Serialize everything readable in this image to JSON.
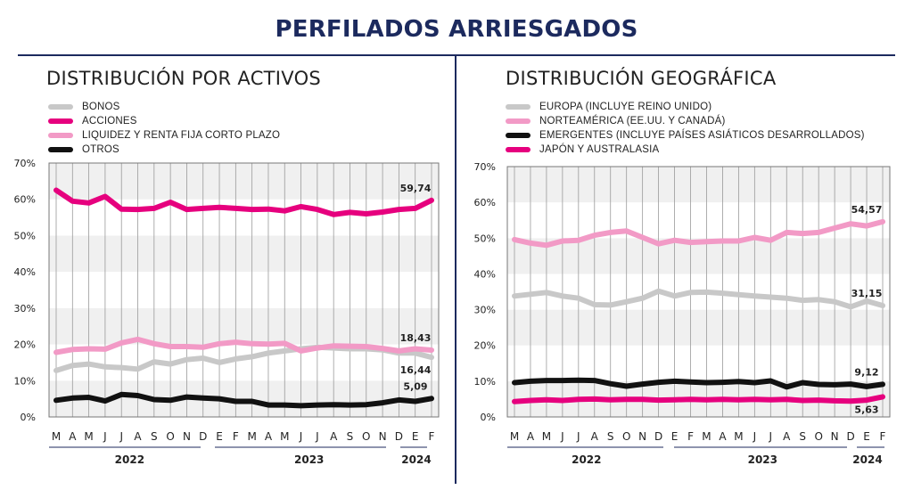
{
  "title": "PERFILADOS ARRIESGADOS",
  "months": [
    "M",
    "A",
    "M",
    "J",
    "J",
    "A",
    "S",
    "O",
    "N",
    "D",
    "E",
    "F",
    "M",
    "A",
    "M",
    "J",
    "J",
    "A",
    "S",
    "O",
    "N",
    "D",
    "E",
    "F"
  ],
  "years": [
    {
      "label": "2022",
      "from": 0,
      "to": 9
    },
    {
      "label": "2023",
      "from": 10,
      "to": 21
    },
    {
      "label": "2024",
      "from": 22,
      "to": 23
    }
  ],
  "chart_data": [
    {
      "type": "line",
      "title": "DISTRIBUCIÓN POR ACTIVOS",
      "yticks": [
        "0%",
        "10%",
        "20%",
        "30%",
        "40%",
        "50%",
        "60%",
        "70%"
      ],
      "ylim": [
        0,
        70
      ],
      "grid": true,
      "legend_position": "top-left",
      "series": [
        {
          "name": "BONOS",
          "color": "#c8c8c8",
          "values": [
            12.8,
            14.2,
            14.6,
            13.8,
            13.6,
            13.2,
            15.2,
            14.6,
            15.8,
            16.2,
            15.0,
            16.0,
            16.6,
            17.6,
            18.2,
            18.8,
            19.2,
            19.0,
            18.8,
            18.8,
            18.5,
            17.6,
            17.6,
            16.44
          ],
          "end_label": "16,44"
        },
        {
          "name": "ACCIONES",
          "color": "#e6007e",
          "values": [
            62.5,
            59.5,
            59.0,
            60.8,
            57.3,
            57.2,
            57.5,
            59.2,
            57.2,
            57.5,
            57.8,
            57.5,
            57.2,
            57.3,
            56.8,
            58.0,
            57.2,
            55.8,
            56.4,
            56.0,
            56.5,
            57.2,
            57.5,
            59.74
          ],
          "end_label": "59,74"
        },
        {
          "name": "LIQUIDEZ Y RENTA FIJA CORTO PLAZO",
          "color": "#f29ac6",
          "values": [
            17.8,
            18.6,
            18.8,
            18.7,
            20.4,
            21.4,
            20.2,
            19.4,
            19.4,
            19.2,
            20.2,
            20.6,
            20.2,
            20.1,
            20.3,
            18.2,
            19.0,
            19.6,
            19.5,
            19.4,
            18.9,
            18.2,
            18.8,
            18.43
          ],
          "end_label": "18,43"
        },
        {
          "name": "OTROS",
          "color": "#111111",
          "values": [
            4.6,
            5.2,
            5.4,
            4.4,
            6.2,
            5.9,
            4.8,
            4.6,
            5.5,
            5.2,
            5.0,
            4.3,
            4.3,
            3.3,
            3.3,
            3.1,
            3.3,
            3.4,
            3.3,
            3.4,
            3.9,
            4.7,
            4.3,
            5.09
          ],
          "end_label": "5,09"
        }
      ]
    },
    {
      "type": "line",
      "title": "DISTRIBUCIÓN GEOGRÁFICA",
      "yticks": [
        "0%",
        "10%",
        "20%",
        "30%",
        "40%",
        "50%",
        "60%",
        "70%"
      ],
      "ylim": [
        0,
        70
      ],
      "grid": true,
      "legend_position": "top-left",
      "series": [
        {
          "name": "EUROPA (INCLUYE REINO UNIDO)",
          "color": "#c8c8c8",
          "values": [
            33.8,
            34.3,
            34.8,
            33.8,
            33.2,
            31.4,
            31.3,
            32.2,
            33.2,
            35.2,
            33.8,
            34.8,
            34.9,
            34.6,
            34.2,
            33.8,
            33.5,
            33.2,
            32.6,
            32.8,
            32.2,
            30.8,
            32.4,
            31.15
          ],
          "end_label": "31,15"
        },
        {
          "name": "NORTEAMÉRICA (EE.UU. Y CANADÁ)",
          "color": "#f29ac6",
          "values": [
            49.6,
            48.6,
            48.0,
            49.2,
            49.4,
            50.8,
            51.6,
            52.0,
            50.2,
            48.4,
            49.4,
            48.8,
            49.0,
            49.2,
            49.2,
            50.2,
            49.4,
            51.6,
            51.3,
            51.6,
            52.8,
            54.0,
            53.4,
            54.57
          ],
          "end_label": "54,57"
        },
        {
          "name": "EMERGENTES (INCLUYE PAÍSES  ASIÁTICOS DESARROLLADOS)",
          "color": "#111111",
          "values": [
            9.6,
            10.0,
            10.2,
            10.2,
            10.3,
            10.2,
            9.3,
            8.6,
            9.2,
            9.7,
            10.0,
            9.8,
            9.6,
            9.7,
            9.9,
            9.6,
            10.1,
            8.4,
            9.6,
            9.1,
            9.0,
            9.2,
            8.5,
            9.12
          ],
          "end_label": "9,12"
        },
        {
          "name": "JAPÓN Y AUSTRALASIA",
          "color": "#e6007e",
          "values": [
            4.3,
            4.6,
            4.8,
            4.6,
            4.9,
            5.0,
            4.8,
            4.9,
            4.9,
            4.7,
            4.8,
            4.9,
            4.8,
            4.9,
            4.8,
            4.9,
            4.8,
            4.9,
            4.6,
            4.7,
            4.5,
            4.4,
            4.7,
            5.63
          ],
          "end_label": "5,63"
        }
      ]
    }
  ]
}
